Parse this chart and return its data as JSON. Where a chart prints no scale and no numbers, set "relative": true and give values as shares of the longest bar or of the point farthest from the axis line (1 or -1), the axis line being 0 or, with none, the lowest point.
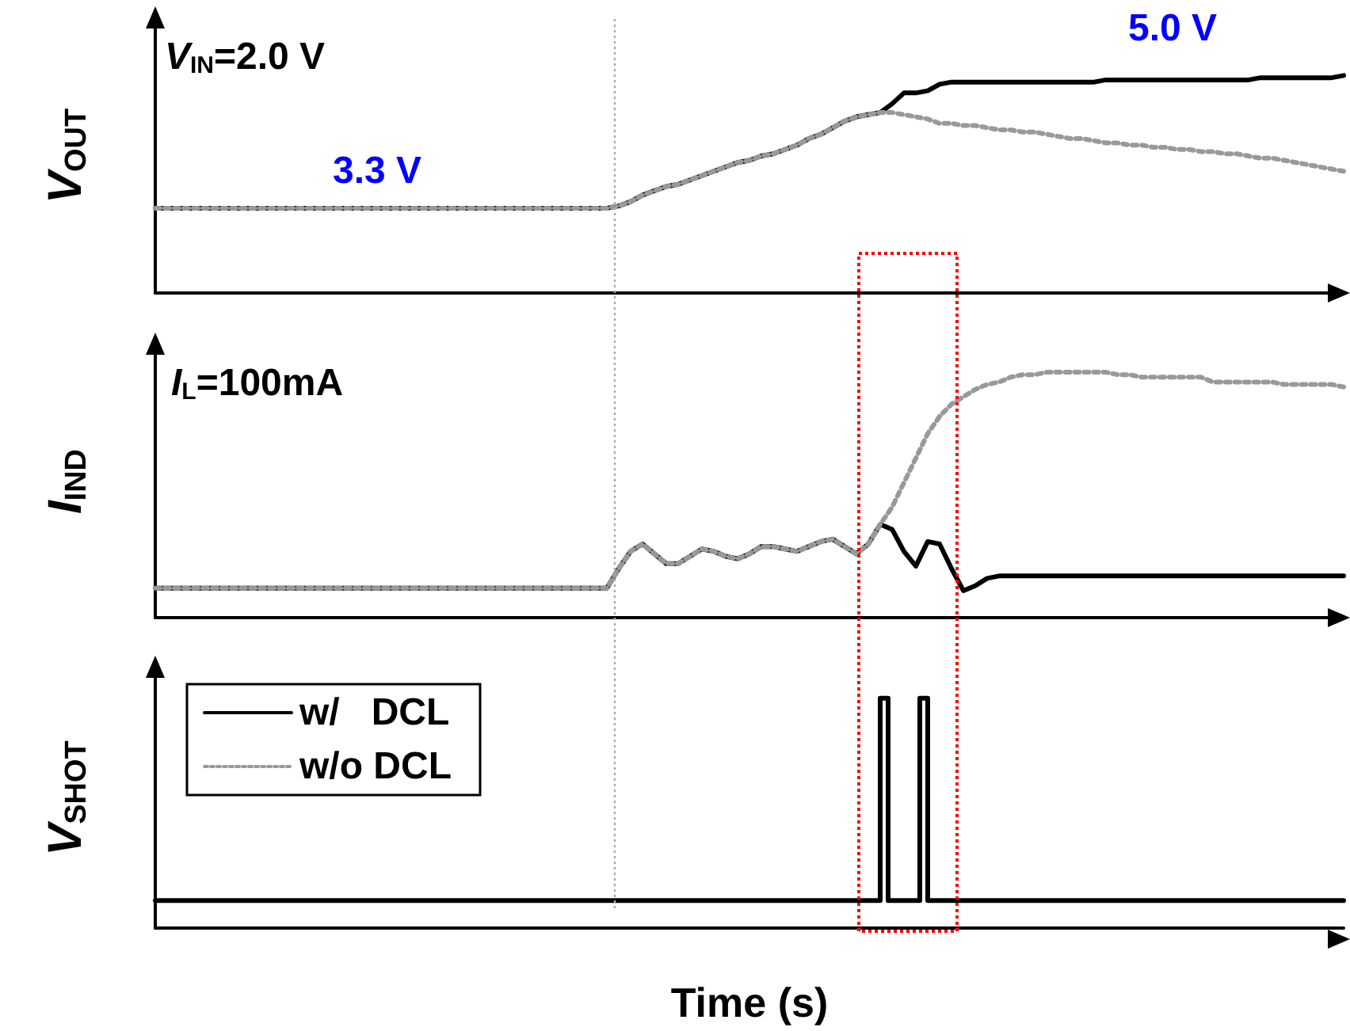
{
  "chart_data": [
    {
      "type": "line",
      "ylabel": "V$_{OUT}$",
      "relative": true,
      "grid": false,
      "legend": false,
      "marker": "none",
      "annotations": [
        "V$_{IN}$=2.0 V",
        "3.3 V",
        "5.0 V"
      ],
      "categories": [
        null,
        null,
        null,
        null,
        null,
        null,
        null,
        null,
        null,
        null,
        null,
        null,
        null,
        null,
        null,
        null,
        null,
        null,
        null,
        null,
        null,
        null,
        null,
        null,
        null,
        null,
        null,
        null,
        null,
        null,
        null,
        null,
        null,
        null,
        null,
        null,
        null,
        null,
        null,
        null,
        null,
        null,
        null,
        null,
        null,
        null,
        null,
        null,
        null,
        null,
        null,
        null,
        null,
        null,
        null,
        null,
        null,
        null,
        null,
        null,
        null,
        null,
        null,
        null,
        null,
        null,
        null,
        null,
        null,
        null,
        null,
        null,
        null,
        null,
        null,
        null,
        null,
        null,
        null,
        null,
        null,
        null,
        null,
        null,
        null,
        null,
        null,
        null,
        null,
        null,
        null,
        null,
        null,
        null,
        null,
        null,
        null,
        null,
        null,
        null,
        null
      ],
      "series": [
        {
          "color": "#000000",
          "line_style": "solid",
          "values": [
            0.39,
            0.39,
            0.39,
            0.39,
            0.39,
            0.39,
            0.39,
            0.39,
            0.39,
            0.39,
            0.39,
            0.39,
            0.39,
            0.39,
            0.39,
            0.39,
            0.39,
            0.39,
            0.39,
            0.39,
            0.39,
            0.39,
            0.39,
            0.39,
            0.39,
            0.39,
            0.39,
            0.39,
            0.39,
            0.39,
            0.39,
            0.39,
            0.39,
            0.39,
            0.39,
            0.39,
            0.39,
            0.39,
            0.39,
            0.4,
            0.42,
            0.45,
            0.47,
            0.49,
            0.5,
            0.52,
            0.54,
            0.56,
            0.58,
            0.6,
            0.61,
            0.63,
            0.64,
            0.66,
            0.68,
            0.71,
            0.73,
            0.76,
            0.79,
            0.81,
            0.82,
            0.83,
            0.87,
            0.92,
            0.92,
            0.93,
            0.96,
            0.97,
            0.97,
            0.97,
            0.97,
            0.97,
            0.97,
            0.97,
            0.97,
            0.97,
            0.97,
            0.97,
            0.97,
            0.97,
            0.98,
            0.98,
            0.98,
            0.98,
            0.98,
            0.98,
            0.98,
            0.98,
            0.98,
            0.98,
            0.98,
            0.98,
            0.98,
            0.99,
            0.99,
            0.99,
            0.99,
            0.99,
            0.99,
            0.99,
            1
          ]
        },
        {
          "color": "#999999",
          "line_style": "dotted",
          "values": [
            0.39,
            0.39,
            0.39,
            0.39,
            0.39,
            0.39,
            0.39,
            0.39,
            0.39,
            0.39,
            0.39,
            0.39,
            0.39,
            0.39,
            0.39,
            0.39,
            0.39,
            0.39,
            0.39,
            0.39,
            0.39,
            0.39,
            0.39,
            0.39,
            0.39,
            0.39,
            0.39,
            0.39,
            0.39,
            0.39,
            0.39,
            0.39,
            0.39,
            0.39,
            0.39,
            0.39,
            0.39,
            0.39,
            0.39,
            0.4,
            0.42,
            0.45,
            0.47,
            0.49,
            0.5,
            0.52,
            0.54,
            0.56,
            0.58,
            0.6,
            0.61,
            0.63,
            0.64,
            0.66,
            0.68,
            0.71,
            0.73,
            0.76,
            0.79,
            0.81,
            0.82,
            0.83,
            0.83,
            0.82,
            0.81,
            0.8,
            0.78,
            0.78,
            0.77,
            0.77,
            0.76,
            0.75,
            0.75,
            0.74,
            0.74,
            0.73,
            0.72,
            0.71,
            0.71,
            0.7,
            0.69,
            0.69,
            0.68,
            0.68,
            0.67,
            0.67,
            0.66,
            0.66,
            0.65,
            0.65,
            0.64,
            0.64,
            0.63,
            0.62,
            0.62,
            0.61,
            0.6,
            0.59,
            0.58,
            0.57,
            0.56
          ]
        }
      ]
    },
    {
      "type": "line",
      "ylabel": "I$_{IND}$",
      "relative": true,
      "grid": false,
      "legend": false,
      "marker": "none",
      "annotations": [
        "I$_{L}$=100mA"
      ],
      "categories": [
        null,
        null,
        null,
        null,
        null,
        null,
        null,
        null,
        null,
        null,
        null,
        null,
        null,
        null,
        null,
        null,
        null,
        null,
        null,
        null,
        null,
        null,
        null,
        null,
        null,
        null,
        null,
        null,
        null,
        null,
        null,
        null,
        null,
        null,
        null,
        null,
        null,
        null,
        null,
        null,
        null,
        null,
        null,
        null,
        null,
        null,
        null,
        null,
        null,
        null,
        null,
        null,
        null,
        null,
        null,
        null,
        null,
        null,
        null,
        null,
        null,
        null,
        null,
        null,
        null,
        null,
        null,
        null,
        null,
        null,
        null,
        null,
        null,
        null,
        null,
        null,
        null,
        null,
        null,
        null,
        null,
        null,
        null,
        null,
        null,
        null,
        null,
        null,
        null,
        null,
        null,
        null,
        null,
        null,
        null,
        null,
        null,
        null,
        null,
        null,
        null
      ],
      "series": [
        {
          "color": "#000000",
          "line_style": "solid",
          "values": [
            0.12,
            0.12,
            0.12,
            0.12,
            0.12,
            0.12,
            0.12,
            0.12,
            0.12,
            0.12,
            0.12,
            0.12,
            0.12,
            0.12,
            0.12,
            0.12,
            0.12,
            0.12,
            0.12,
            0.12,
            0.12,
            0.12,
            0.12,
            0.12,
            0.12,
            0.12,
            0.12,
            0.12,
            0.12,
            0.12,
            0.12,
            0.12,
            0.12,
            0.12,
            0.12,
            0.12,
            0.12,
            0.12,
            0.12,
            0.2,
            0.27,
            0.3,
            0.26,
            0.22,
            0.22,
            0.25,
            0.28,
            0.27,
            0.25,
            0.24,
            0.26,
            0.29,
            0.29,
            0.28,
            0.27,
            0.29,
            0.31,
            0.32,
            0.29,
            0.26,
            0.3,
            0.38,
            0.36,
            0.27,
            0.21,
            0.31,
            0.3,
            0.2,
            0.11,
            0.13,
            0.16,
            0.17,
            0.17,
            0.17,
            0.17,
            0.17,
            0.17,
            0.17,
            0.17,
            0.17,
            0.17,
            0.17,
            0.17,
            0.17,
            0.17,
            0.17,
            0.17,
            0.17,
            0.17,
            0.17,
            0.17,
            0.17,
            0.17,
            0.17,
            0.17,
            0.17,
            0.17,
            0.17,
            0.17,
            0.17,
            0.17
          ]
        },
        {
          "color": "#999999",
          "line_style": "dotted",
          "values": [
            0.12,
            0.12,
            0.12,
            0.12,
            0.12,
            0.12,
            0.12,
            0.12,
            0.12,
            0.12,
            0.12,
            0.12,
            0.12,
            0.12,
            0.12,
            0.12,
            0.12,
            0.12,
            0.12,
            0.12,
            0.12,
            0.12,
            0.12,
            0.12,
            0.12,
            0.12,
            0.12,
            0.12,
            0.12,
            0.12,
            0.12,
            0.12,
            0.12,
            0.12,
            0.12,
            0.12,
            0.12,
            0.12,
            0.12,
            0.2,
            0.27,
            0.3,
            0.26,
            0.22,
            0.22,
            0.25,
            0.28,
            0.27,
            0.25,
            0.24,
            0.26,
            0.29,
            0.29,
            0.28,
            0.27,
            0.29,
            0.31,
            0.32,
            0.29,
            0.26,
            0.3,
            0.38,
            0.45,
            0.55,
            0.65,
            0.75,
            0.82,
            0.87,
            0.9,
            0.93,
            0.95,
            0.96,
            0.98,
            0.99,
            0.99,
            1,
            1,
            1,
            1,
            1,
            1,
            0.99,
            0.99,
            0.98,
            0.98,
            0.98,
            0.98,
            0.98,
            0.98,
            0.96,
            0.96,
            0.96,
            0.96,
            0.96,
            0.96,
            0.95,
            0.95,
            0.95,
            0.95,
            0.95,
            0.94
          ]
        }
      ]
    },
    {
      "type": "step",
      "ylabel": "V$_{SHOT}$",
      "xlabel": "Time (s)",
      "relative": true,
      "grid": false,
      "legend": "top left",
      "marker": "none",
      "categories": [
        null,
        null,
        null,
        null,
        null,
        null,
        null,
        null,
        null,
        null,
        null,
        null,
        null,
        null,
        null,
        null,
        null,
        null,
        null,
        null,
        null,
        null,
        null,
        null,
        null,
        null,
        null,
        null,
        null,
        null,
        null,
        null,
        null,
        null,
        null,
        null,
        null,
        null,
        null,
        null,
        null,
        null,
        null,
        null,
        null,
        null,
        null,
        null,
        null,
        null,
        null,
        null,
        null,
        null,
        null,
        null,
        null,
        null,
        null,
        null,
        null,
        null,
        null,
        null,
        null,
        null,
        null,
        null,
        null,
        null,
        null,
        null,
        null,
        null,
        null,
        null,
        null,
        null,
        null,
        null,
        null,
        null,
        null,
        null,
        null,
        null,
        null,
        null,
        null,
        null,
        null,
        null,
        null,
        null,
        null,
        null,
        null,
        null,
        null,
        null,
        null,
        null,
        null,
        null,
        null,
        null,
        null,
        null,
        null,
        null,
        null,
        null,
        null,
        null,
        null,
        null,
        null,
        null,
        null,
        null,
        null,
        null,
        null,
        null,
        null,
        null,
        null,
        null,
        null,
        null,
        null,
        null,
        null,
        null,
        null,
        null,
        null,
        null,
        null,
        null,
        null,
        null,
        null,
        null,
        null,
        null,
        null,
        null,
        null,
        null,
        null
      ],
      "series": [
        {
          "name": "w/   DCL",
          "color": "#000000",
          "line_style": "solid",
          "values": [
            0.12,
            0.12,
            0.12,
            0.12,
            0.12,
            0.12,
            0.12,
            0.12,
            0.12,
            0.12,
            0.12,
            0.12,
            0.12,
            0.12,
            0.12,
            0.12,
            0.12,
            0.12,
            0.12,
            0.12,
            0.12,
            0.12,
            0.12,
            0.12,
            0.12,
            0.12,
            0.12,
            0.12,
            0.12,
            0.12,
            0.12,
            0.12,
            0.12,
            0.12,
            0.12,
            0.12,
            0.12,
            0.12,
            0.12,
            0.12,
            0.12,
            0.12,
            0.12,
            0.12,
            0.12,
            0.12,
            0.12,
            0.12,
            0.12,
            0.12,
            0.12,
            0.12,
            0.12,
            0.12,
            0.12,
            0.12,
            0.12,
            0.12,
            0.12,
            0.12,
            0.12,
            0.12,
            0.12,
            0.12,
            0.12,
            0.12,
            0.12,
            0.12,
            0.12,
            0.12,
            0.12,
            0.12,
            0.12,
            0.12,
            0.12,
            0.12,
            0.12,
            0.12,
            0.12,
            0.12,
            0.12,
            0.12,
            0.12,
            0.12,
            0.12,
            0.12,
            0.12,
            0.12,
            0.12,
            0.12,
            0.12,
            0.12,
            1,
            0.12,
            0.12,
            0.12,
            0.12,
            1,
            0.12,
            0.12,
            0.12,
            0.12,
            0.12,
            0.12,
            0.12,
            0.12,
            0.12,
            0.12,
            0.12,
            0.12,
            0.12,
            0.12,
            0.12,
            0.12,
            0.12,
            0.12,
            0.12,
            0.12,
            0.12,
            0.12,
            0.12,
            0.12,
            0.12,
            0.12,
            0.12,
            0.12,
            0.12,
            0.12,
            0.12,
            0.12,
            0.12,
            0.12,
            0.12,
            0.12,
            0.12,
            0.12,
            0.12,
            0.12,
            0.12,
            0.12,
            0.12,
            0.12,
            0.12,
            0.12,
            0.12,
            0.12,
            0.12,
            0.12,
            0.12,
            0.12,
            0.12
          ]
        },
        {
          "name": "w/o DCL",
          "color": "#999999",
          "line_style": "dotted",
          "values": [
            null,
            null,
            null,
            null,
            null,
            null,
            null,
            null,
            null,
            null,
            null,
            null,
            null,
            null,
            null,
            null,
            null,
            null,
            null,
            null,
            null,
            null,
            null,
            null,
            null,
            null,
            null,
            null,
            null,
            null,
            null,
            null,
            null,
            null,
            null,
            null,
            null,
            null,
            null,
            null,
            null,
            null,
            null,
            null,
            null,
            null,
            null,
            null,
            null,
            null,
            null,
            null,
            null,
            null,
            null,
            null,
            null,
            null,
            null,
            null,
            null,
            null,
            null,
            null,
            null,
            null,
            null,
            null,
            null,
            null,
            null,
            null,
            null,
            null,
            null,
            null,
            null,
            null,
            null,
            null,
            null,
            null,
            null,
            null,
            null,
            null,
            null,
            null,
            null,
            null,
            null,
            null,
            null,
            null,
            null,
            null,
            null,
            null,
            null,
            null,
            null,
            null,
            null,
            null,
            null,
            null,
            null,
            null,
            null,
            null,
            null,
            null,
            null,
            null,
            null,
            null,
            null,
            null,
            null,
            null,
            null,
            null,
            null,
            null,
            null,
            null,
            null,
            null,
            null,
            null,
            null,
            null,
            null,
            null,
            null,
            null,
            null,
            null,
            null,
            null,
            null,
            null,
            null,
            null,
            null,
            null,
            null,
            null,
            null,
            null,
            null
          ]
        }
      ]
    }
  ]
}
